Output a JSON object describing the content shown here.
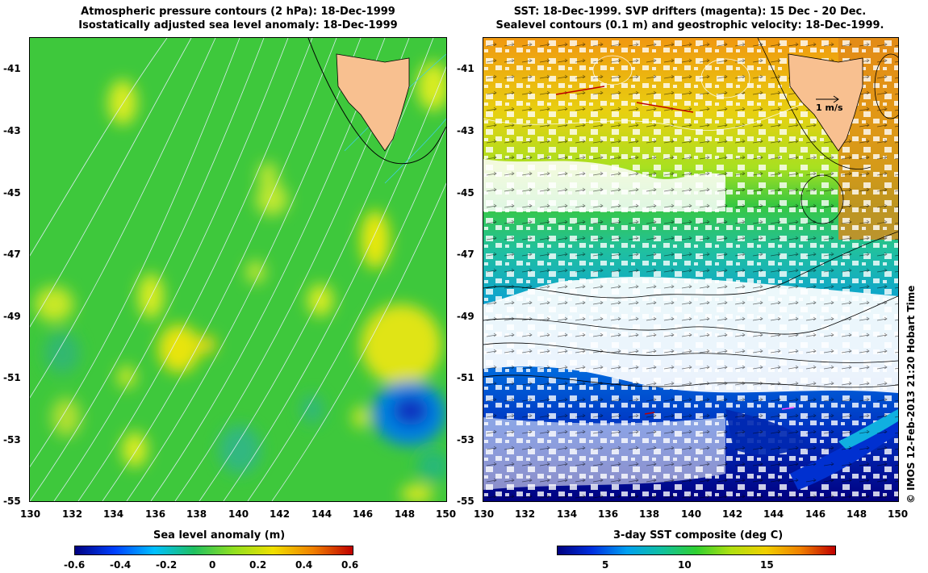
{
  "left_panel": {
    "title_line1": "Atmospheric pressure contours (2 hPa): 18-Dec-1999",
    "title_line2": "Isostatically adjusted sea level anomaly: 18-Dec-1999",
    "lat_ticks": [
      "-41",
      "-43",
      "-45",
      "-47",
      "-49",
      "-51",
      "-53",
      "-55"
    ],
    "lon_ticks": [
      "130",
      "132",
      "134",
      "136",
      "138",
      "140",
      "142",
      "144",
      "146",
      "148",
      "150"
    ],
    "colorbar": {
      "label": "Sea level anomaly (m)",
      "ticks": [
        "-0.6",
        "-0.4",
        "-0.2",
        "0",
        "0.2",
        "0.4",
        "0.6"
      ],
      "colors": [
        "#000080",
        "#0040ff",
        "#00c0ff",
        "#20c060",
        "#90e020",
        "#f0e000",
        "#f08000",
        "#c00000"
      ]
    }
  },
  "right_panel": {
    "title_line1": "SST: 18-Dec-1999. SVP drifters (magenta): 15 Dec - 20 Dec.",
    "title_line2": "Sealevel contours (0.1 m) and geostrophic velocity: 18-Dec-1999.",
    "lat_ticks": [
      "-41",
      "-43",
      "-45",
      "-47",
      "-49",
      "-51",
      "-53",
      "-55"
    ],
    "lon_ticks": [
      "130",
      "132",
      "134",
      "136",
      "138",
      "140",
      "142",
      "144",
      "146",
      "148",
      "150"
    ],
    "velocity_scale": "1 m/s",
    "colorbar": {
      "label": "3-day SST composite (deg C)",
      "ticks": [
        "5",
        "10",
        "15"
      ],
      "colors": [
        "#000080",
        "#0030e0",
        "#00a0f0",
        "#10c0a0",
        "#30d030",
        "#b0e010",
        "#f0d000",
        "#f08000",
        "#c00000"
      ]
    }
  },
  "credit": "© IMOS 12-Feb-2013 21:20 Hobart Time"
}
